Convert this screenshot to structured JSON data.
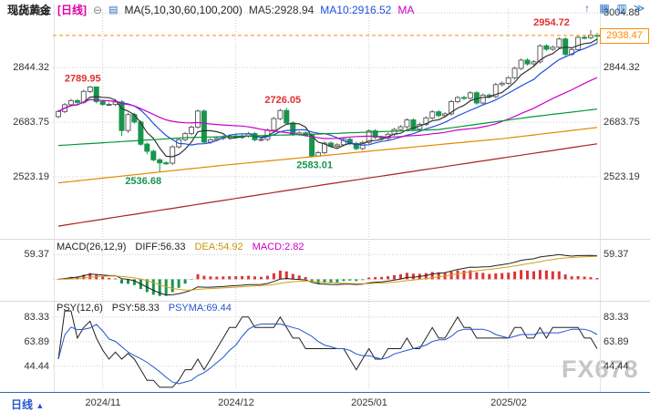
{
  "header": {
    "symbol": "现货黄金",
    "timeframe_tag": "[日线]",
    "collapse_icon": "⊖",
    "list_icon": "▤",
    "ma_group_label": "MA(5,10,30,60,100,200)",
    "ma5_label": "MA5:2928.94",
    "ma10_label": "MA10:2916.52",
    "ma_truncated_label": "MA",
    "toolbar_icons": [
      {
        "name": "arrow-up-icon",
        "glyph": "↑"
      },
      {
        "name": "grid-icon",
        "glyph": "▦"
      },
      {
        "name": "panel-icon",
        "glyph": "▥"
      },
      {
        "name": "double-arrow-icon",
        "glyph": "≫"
      }
    ]
  },
  "price_tag": {
    "value": "2938.47",
    "color": "#ff8a00"
  },
  "macd_legend": {
    "name": "MACD(26,12,9)",
    "diff": "DIFF:56.33",
    "dea": "DEA:54.92",
    "macd": "MACD:2.82"
  },
  "psy_legend": {
    "name": "PSY(12,6)",
    "psy": "PSY:58.33",
    "psyma": "PSYMA:69.44"
  },
  "bottom_bar": {
    "timeframe": "日线",
    "arrow": "▲",
    "x_labels": [
      "2024/11",
      "2024/12",
      "2025/01",
      "2025/02"
    ]
  },
  "watermark": "FX678",
  "chart_data": [
    {
      "type": "candlestick",
      "title": "现货黄金 [日线]",
      "y_ticks": [
        3004.88,
        2844.32,
        2683.75,
        2523.19
      ],
      "ylim": [
        2346,
        3016
      ],
      "x_tick_labels": [
        "2024/11",
        "2024/12",
        "2025/01",
        "2025/02"
      ],
      "month_start_indices": [
        7,
        28,
        49,
        71
      ],
      "last_price": 2938.47,
      "up_color": "#606060",
      "down_color": "#18954c",
      "candles": [
        [
          2700,
          2720,
          2695,
          2715
        ],
        [
          2715,
          2740,
          2710,
          2735
        ],
        [
          2735,
          2752,
          2730,
          2747
        ],
        [
          2747,
          2752,
          2737,
          2742
        ],
        [
          2742,
          2779,
          2737,
          2774
        ],
        [
          2774,
          2789.95,
          2769,
          2787
        ],
        [
          2787,
          2788,
          2739,
          2744
        ],
        [
          2744,
          2749,
          2731,
          2736
        ],
        [
          2736,
          2741,
          2731,
          2736
        ],
        [
          2736,
          2748,
          2731,
          2743
        ],
        [
          2743,
          2748,
          2643,
          2659
        ],
        [
          2659,
          2711,
          2652,
          2706
        ],
        [
          2706,
          2711,
          2679,
          2684
        ],
        [
          2684,
          2689,
          2614,
          2619
        ],
        [
          2619,
          2624,
          2589,
          2598
        ],
        [
          2598,
          2603,
          2568,
          2573
        ],
        [
          2573,
          2578,
          2536.68,
          2564
        ],
        [
          2564,
          2569,
          2558,
          2563
        ],
        [
          2563,
          2616,
          2558,
          2611
        ],
        [
          2611,
          2637,
          2606,
          2632
        ],
        [
          2632,
          2655,
          2627,
          2650
        ],
        [
          2650,
          2674,
          2645,
          2669
        ],
        [
          2669,
          2721,
          2664,
          2716
        ],
        [
          2716,
          2721,
          2620,
          2625
        ],
        [
          2625,
          2637,
          2620,
          2632
        ],
        [
          2632,
          2641,
          2627,
          2636
        ],
        [
          2636,
          2645,
          2631,
          2640
        ],
        [
          2640,
          2648,
          2635,
          2643
        ],
        [
          2643,
          2648,
          2634,
          2639
        ],
        [
          2639,
          2648,
          2634,
          2643
        ],
        [
          2643,
          2655,
          2638,
          2650
        ],
        [
          2650,
          2655,
          2627,
          2632
        ],
        [
          2632,
          2638,
          2627,
          2633
        ],
        [
          2633,
          2665,
          2628,
          2660
        ],
        [
          2660,
          2699,
          2655,
          2694
        ],
        [
          2694,
          2723,
          2689,
          2718
        ],
        [
          2718,
          2726.05,
          2676,
          2681
        ],
        [
          2681,
          2686,
          2643,
          2648
        ],
        [
          2648,
          2657,
          2643,
          2652
        ],
        [
          2652,
          2657,
          2641,
          2646
        ],
        [
          2646,
          2651,
          2579,
          2584
        ],
        [
          2584,
          2599,
          2583.01,
          2594
        ],
        [
          2594,
          2627,
          2589,
          2622
        ],
        [
          2622,
          2627,
          2608,
          2613
        ],
        [
          2613,
          2622,
          2608,
          2617
        ],
        [
          2617,
          2638,
          2612,
          2633
        ],
        [
          2633,
          2638,
          2616,
          2621
        ],
        [
          2621,
          2626,
          2601,
          2606
        ],
        [
          2606,
          2629,
          2601,
          2624
        ],
        [
          2624,
          2663,
          2619,
          2658
        ],
        [
          2658,
          2663,
          2634,
          2639
        ],
        [
          2639,
          2644,
          2631,
          2636
        ],
        [
          2636,
          2653,
          2631,
          2648
        ],
        [
          2648,
          2667,
          2643,
          2662
        ],
        [
          2662,
          2675,
          2657,
          2670
        ],
        [
          2670,
          2695,
          2665,
          2690
        ],
        [
          2690,
          2695,
          2658,
          2663
        ],
        [
          2663,
          2682,
          2658,
          2677
        ],
        [
          2677,
          2701,
          2672,
          2696
        ],
        [
          2696,
          2719,
          2691,
          2714
        ],
        [
          2714,
          2719,
          2698,
          2703
        ],
        [
          2703,
          2713,
          2698,
          2708
        ],
        [
          2708,
          2749,
          2703,
          2744
        ],
        [
          2744,
          2761,
          2739,
          2756
        ],
        [
          2756,
          2761,
          2749,
          2754
        ],
        [
          2754,
          2775,
          2749,
          2770
        ],
        [
          2770,
          2775,
          2735,
          2740
        ],
        [
          2740,
          2768,
          2735,
          2763
        ],
        [
          2763,
          2768,
          2754,
          2759
        ],
        [
          2759,
          2799,
          2754,
          2794
        ],
        [
          2794,
          2803,
          2789,
          2798
        ],
        [
          2798,
          2819,
          2793,
          2814
        ],
        [
          2814,
          2847,
          2809,
          2842
        ],
        [
          2842,
          2871,
          2837,
          2866
        ],
        [
          2866,
          2871,
          2850,
          2855
        ],
        [
          2855,
          2866,
          2850,
          2861
        ],
        [
          2861,
          2913,
          2856,
          2908
        ],
        [
          2908,
          2913,
          2893,
          2898
        ],
        [
          2898,
          2909,
          2893,
          2904
        ],
        [
          2904,
          2933,
          2899,
          2928
        ],
        [
          2928,
          2933,
          2878,
          2883
        ],
        [
          2883,
          2902,
          2878,
          2897
        ],
        [
          2897,
          2938,
          2892,
          2933
        ],
        [
          2933,
          2938,
          2927,
          2932
        ],
        [
          2932,
          2954.72,
          2927,
          2939
        ],
        [
          2939,
          2946,
          2916,
          2938.47
        ]
      ],
      "annotations": [
        {
          "index": 5,
          "text": "2789.95",
          "color": "#e03030",
          "position": "above",
          "dx": -8
        },
        {
          "index": 16,
          "text": "2536.68",
          "color": "#18954c",
          "position": "below",
          "dx": -18
        },
        {
          "index": 36,
          "text": "2726.05",
          "color": "#e03030",
          "position": "above",
          "dx": -4
        },
        {
          "index": 41,
          "text": "2583.01",
          "color": "#18954c",
          "position": "below",
          "dx": -4
        },
        {
          "index": 84,
          "text": "2954.72",
          "color": "#e03030",
          "position": "above",
          "dx": -43
        }
      ],
      "ma_lines": [
        {
          "name": "MA5",
          "color": "#333333",
          "window": 5
        },
        {
          "name": "MA10",
          "color": "#2050dd",
          "window": 10
        },
        {
          "name": "MA30",
          "color": "#cc00cc",
          "window": 30
        },
        {
          "name": "MA60",
          "color": "#009933",
          "points": [
            [
              0,
              2615
            ],
            [
              20,
              2638
            ],
            [
              40,
              2648
            ],
            [
              60,
              2662
            ],
            [
              75,
              2700
            ],
            [
              85,
              2722
            ]
          ]
        },
        {
          "name": "MA100",
          "color": "#e08a00",
          "points": [
            [
              0,
              2505
            ],
            [
              25,
              2555
            ],
            [
              50,
              2600
            ],
            [
              70,
              2635
            ],
            [
              85,
              2668
            ]
          ]
        },
        {
          "name": "MA200",
          "color": "#aa2222",
          "points": [
            [
              0,
              2378
            ],
            [
              42,
              2500
            ],
            [
              85,
              2620
            ]
          ]
        }
      ]
    },
    {
      "type": "macd",
      "label": "MACD(26,12,9)",
      "diff": 56.33,
      "dea": 54.92,
      "macd": 2.82,
      "y_tick": 59.37,
      "ylim": [
        -45,
        75
      ],
      "colors": {
        "diff": "#222222",
        "dea": "#d4a017",
        "hist_pos": "#dd3333",
        "hist_neg": "#18954c"
      }
    },
    {
      "type": "psy",
      "label": "PSY(12,6)",
      "psy": 58.33,
      "psyma": 69.44,
      "y_ticks": [
        83.33,
        63.89,
        44.44
      ],
      "ylim": [
        27,
        88.9
      ],
      "colors": {
        "psy": "#222222",
        "psyma": "#2255cc"
      }
    }
  ]
}
